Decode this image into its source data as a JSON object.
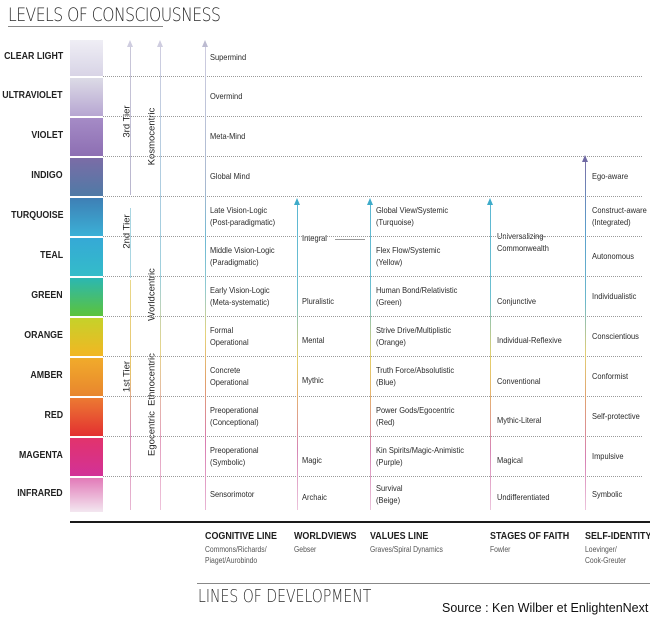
{
  "title": "LEVELS OF CONSCIOUSNESS",
  "footer_title": "LINES OF DEVELOPMENT",
  "source": "Source : Ken Wilber et EnlightenNext",
  "levels": [
    {
      "name": "CLEAR LIGHT",
      "color_top": "#efeef5",
      "color_bottom": "#d8d4e6"
    },
    {
      "name": "ULTRAVIOLET",
      "color_top": "#dcdbe6",
      "color_bottom": "#b7a6d2"
    },
    {
      "name": "VIOLET",
      "color_top": "#a58bc6",
      "color_bottom": "#8d6fb3"
    },
    {
      "name": "INDIGO",
      "color_top": "#7b6ca6",
      "color_bottom": "#4f7aa6"
    },
    {
      "name": "TURQUOISE",
      "color_top": "#3e7fb5",
      "color_bottom": "#3bb0d6"
    },
    {
      "name": "TEAL",
      "color_top": "#35a9d6",
      "color_bottom": "#34bcc9"
    },
    {
      "name": "GREEN",
      "color_top": "#2bb7b2",
      "color_bottom": "#5cc33a"
    },
    {
      "name": "ORANGE",
      "color_top": "#c5d22a",
      "color_bottom": "#f2b623"
    },
    {
      "name": "AMBER",
      "color_top": "#f1ab2b",
      "color_bottom": "#e8862e"
    },
    {
      "name": "RED",
      "color_top": "#ec7a32",
      "color_bottom": "#e33031"
    },
    {
      "name": "MAGENTA",
      "color_top": "#e2336c",
      "color_bottom": "#d23198"
    },
    {
      "name": "INFRARED",
      "color_top": "#e27ab8",
      "color_bottom": "#f3e7f0"
    }
  ],
  "tiers": [
    "3rd Tier",
    "2nd Tier",
    "1st Tier"
  ],
  "centrics": [
    "Kosmocentric",
    "Worldcentric",
    "Ethnocentric",
    "Egocentric"
  ],
  "columns": [
    {
      "title": "COGNITIVE LINE",
      "subtitle": [
        "Commons/Richards/",
        "Piaget/Aurobindo"
      ]
    },
    {
      "title": "WORLDVIEWS",
      "subtitle": [
        "Gebser"
      ]
    },
    {
      "title": "VALUES LINE",
      "subtitle": [
        "Graves/Spiral Dynamics"
      ]
    },
    {
      "title": "STAGES OF FAITH",
      "subtitle": [
        "Fowler"
      ]
    },
    {
      "title": "SELF-IDENTITY",
      "subtitle": [
        "Loevinger/",
        "Cook-Greuter"
      ]
    }
  ],
  "cognitive": [
    [
      "Supermind"
    ],
    [
      "Overmind"
    ],
    [
      "Meta-Mind"
    ],
    [
      "Global Mind"
    ],
    [
      "Late Vision-Logic",
      "(Post-paradigmatic)"
    ],
    [
      "Middle Vision-Logic",
      "(Paradigmatic)"
    ],
    [
      "Early Vision-Logic",
      "(Meta-systematic)"
    ],
    [
      "Formal",
      "Operational"
    ],
    [
      "Concrete",
      "Operational"
    ],
    [
      "Preoperational",
      "(Conceptional)"
    ],
    [
      "Preoperational",
      "(Symbolic)"
    ],
    [
      "Sensorimotor"
    ]
  ],
  "worldviews": {
    "integral": "Integral",
    "pluralistic": "Pluralistic",
    "mental": "Mental",
    "mythic": "Mythic",
    "magic": "Magic",
    "archaic": "Archaic"
  },
  "values": [
    [
      "Global View/Systemic",
      "(Turquoise)"
    ],
    [
      "Flex Flow/Systemic",
      "(Yellow)"
    ],
    [
      "Human Bond/Relativistic",
      "(Green)"
    ],
    [
      "Strive Drive/Multiplistic",
      "(Orange)"
    ],
    [
      "Truth Force/Absolutistic",
      "(Blue)"
    ],
    [
      "Power Gods/Egocentric",
      "(Red)"
    ],
    [
      "Kin Spirits/Magic-Animistic",
      "(Purple)"
    ],
    [
      "Survival",
      "(Beige)"
    ]
  ],
  "faith": {
    "universalizing": [
      "Universalizing-",
      "Commonwealth"
    ],
    "conjunctive": "Conjunctive",
    "individual_reflexive": "Individual-Reflexive",
    "conventional": "Conventional",
    "mythic_literal": "Mythic-Literal",
    "magical": "Magical",
    "undifferentiated": "Undifferentiated"
  },
  "self_identity": [
    [
      "Ego-aware"
    ],
    [
      "Construct-aware",
      "(Integrated)"
    ],
    [
      "Autonomous"
    ],
    [
      "Individualistic"
    ],
    [
      "Conscientious"
    ],
    [
      "Conformist"
    ],
    [
      "Self-protective"
    ],
    [
      "Impulsive"
    ],
    [
      "Symbolic"
    ]
  ]
}
